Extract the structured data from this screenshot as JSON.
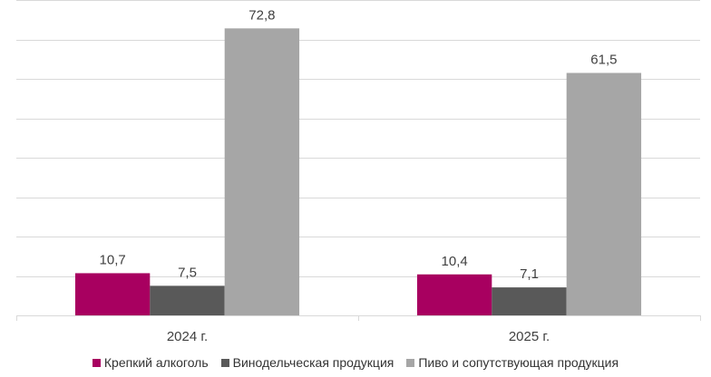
{
  "chart_data": {
    "type": "bar",
    "categories": [
      "2024 г.",
      "2025 г."
    ],
    "series": [
      {
        "name": "Крепкий алкоголь",
        "values": [
          10.7,
          10.4
        ],
        "labels": [
          "10,7",
          "10,4"
        ],
        "color": "#a80060"
      },
      {
        "name": "Винодельческая продукция",
        "values": [
          7.5,
          7.1
        ],
        "labels": [
          "7,5",
          "7,1"
        ],
        "color": "#595959"
      },
      {
        "name": "Пиво и сопутствующая продукция",
        "values": [
          72.8,
          61.5
        ],
        "labels": [
          "72,8",
          "61,5"
        ],
        "color": "#a6a6a6"
      }
    ],
    "title": "",
    "xlabel": "",
    "ylabel": "",
    "ylim": [
      0,
      80
    ],
    "grid": true,
    "y_tick_labels_shown": false,
    "legend_position": "bottom"
  }
}
